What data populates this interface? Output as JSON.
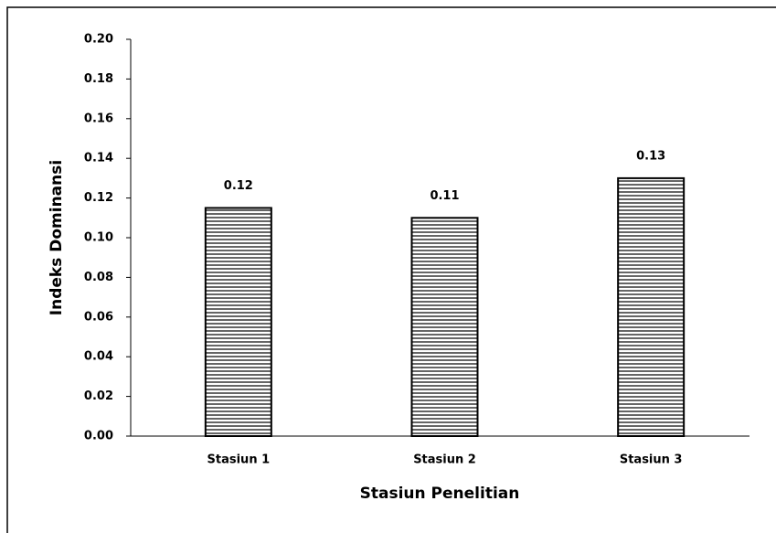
{
  "chart_data": {
    "type": "bar",
    "x_label": "Stasiun Penelitian",
    "y_label": "Indeks Dominansi",
    "categories": [
      "Stasiun 1",
      "Stasiun 2",
      "Stasiun 3"
    ],
    "values": [
      0.115,
      0.11,
      0.13
    ],
    "value_labels": [
      "0.12",
      "0.11",
      "0.13"
    ],
    "color": "#000000",
    "ylim": [
      0,
      0.2
    ],
    "yticks": [
      {
        "value": 0,
        "label": "0.00"
      },
      {
        "value": 0.02,
        "label": "0.02"
      },
      {
        "value": 0.04,
        "label": "0.04"
      },
      {
        "value": 0.06,
        "label": "0.06"
      },
      {
        "value": 0.08,
        "label": "0.08"
      },
      {
        "value": 0.1,
        "label": "0.10"
      },
      {
        "value": 0.12,
        "label": "0.12"
      },
      {
        "value": 0.14,
        "label": "0.14"
      },
      {
        "value": 0.16,
        "label": "0.16"
      },
      {
        "value": 0.18,
        "label": "0.18"
      },
      {
        "value": 0.2,
        "label": "0.20"
      }
    ],
    "grid": false
  }
}
